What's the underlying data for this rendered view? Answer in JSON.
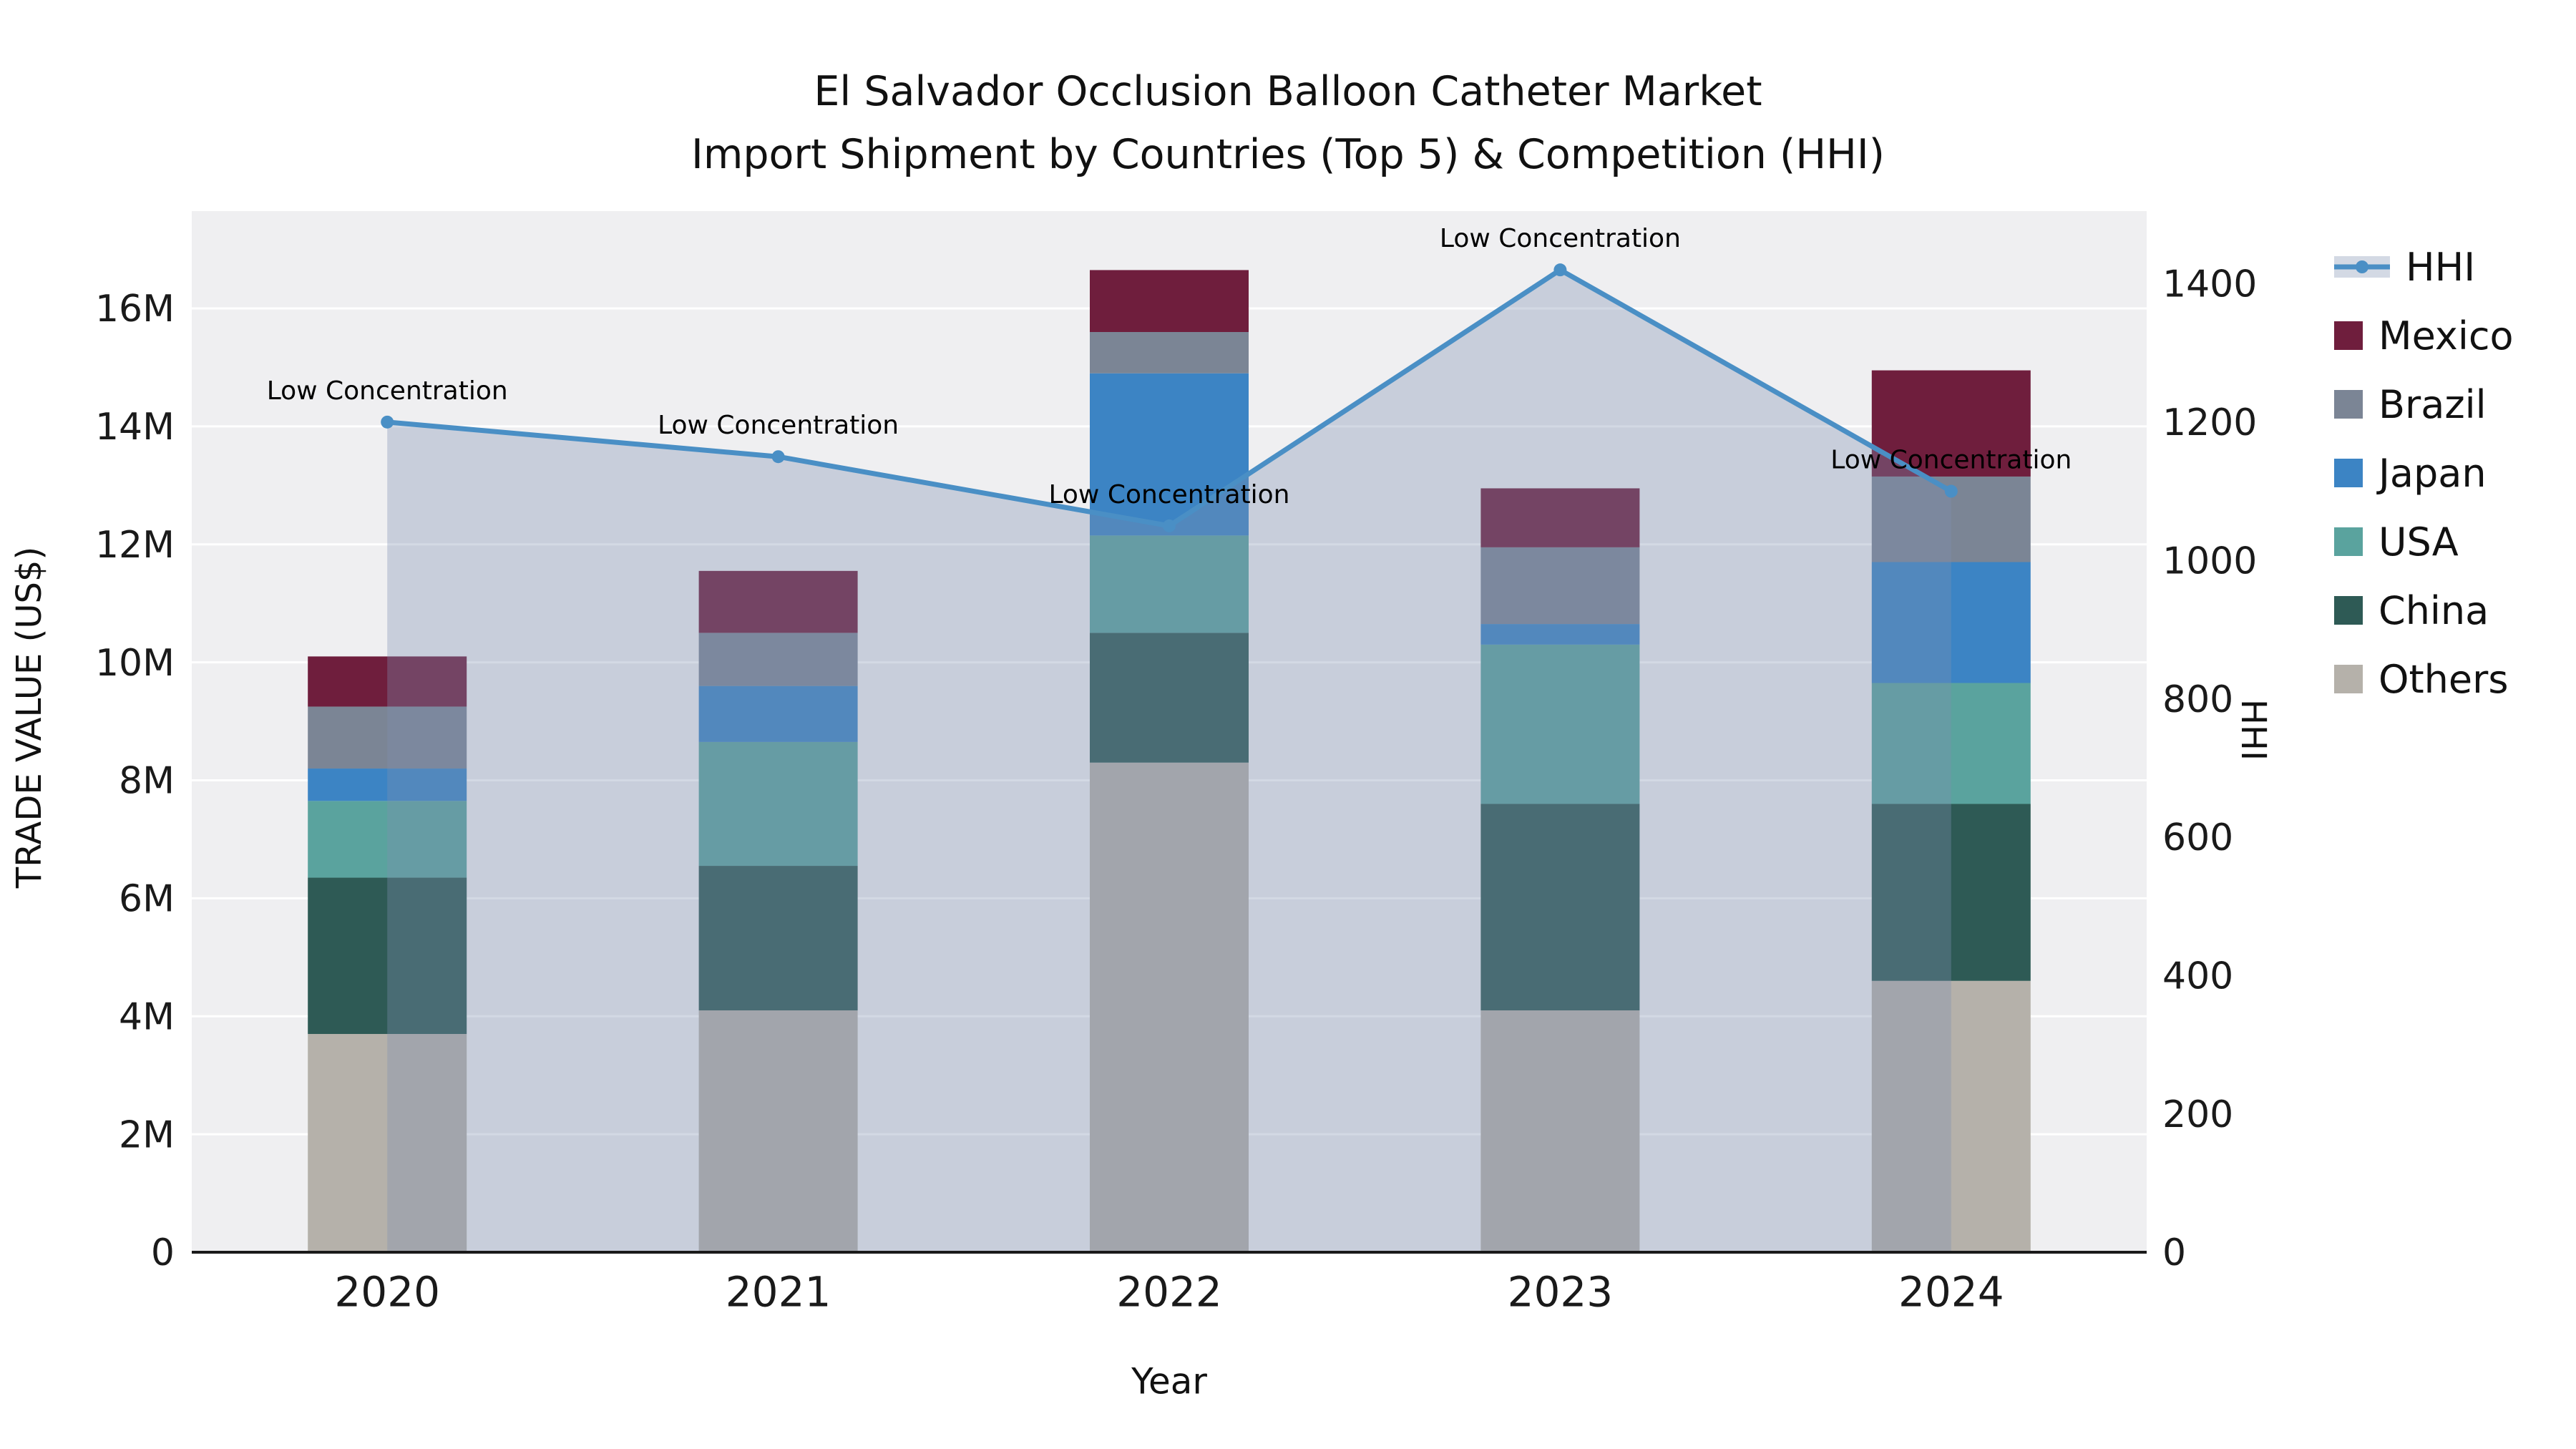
{
  "title": {
    "line1": "El Salvador Occlusion Balloon Catheter Market",
    "line2": "Import Shipment by Countries (Top 5) & Competition (HHI)"
  },
  "chart_data": {
    "type": "stacked-bar+line",
    "categories": [
      "2020",
      "2021",
      "2022",
      "2023",
      "2024"
    ],
    "value_unit": "million US$",
    "series": [
      {
        "name": "Others",
        "color": "#b5b1aa",
        "values": [
          3.7,
          4.1,
          8.3,
          4.1,
          4.6
        ]
      },
      {
        "name": "China",
        "color": "#2e5a55",
        "values": [
          2.65,
          2.45,
          2.2,
          3.5,
          3.0
        ]
      },
      {
        "name": "USA",
        "color": "#5aa39e",
        "values": [
          1.3,
          2.1,
          1.65,
          2.7,
          2.05
        ]
      },
      {
        "name": "Japan",
        "color": "#3c84c4",
        "values": [
          0.55,
          0.95,
          2.75,
          0.35,
          2.05
        ]
      },
      {
        "name": "Brazil",
        "color": "#7b8595",
        "values": [
          1.05,
          0.9,
          0.7,
          1.3,
          1.45
        ]
      },
      {
        "name": "Mexico",
        "color": "#6f1e3d",
        "values": [
          0.85,
          1.05,
          1.05,
          1.0,
          1.8
        ]
      }
    ],
    "line": {
      "name": "HHI",
      "color": "#4a8fc5",
      "fill_color": "rgba(125,145,175,0.34)",
      "values": [
        1200,
        1150,
        1050,
        1420,
        1100
      ]
    },
    "annotations": [
      "Low Concentration",
      "Low Concentration",
      "Low Concentration",
      "Low Concentration",
      "Low Concentration"
    ],
    "xlabel": "Year",
    "left_axis": {
      "title": "TRADE VALUE (US$)",
      "ticks": [
        "0",
        "2M",
        "4M",
        "6M",
        "8M",
        "10M",
        "12M",
        "14M",
        "16M"
      ],
      "tick_values": [
        0,
        2,
        4,
        6,
        8,
        10,
        12,
        14,
        16
      ],
      "range": [
        0,
        17.65
      ]
    },
    "right_axis": {
      "title": "HHI",
      "ticks": [
        "0",
        "200",
        "400",
        "600",
        "800",
        "1000",
        "1200",
        "1400"
      ],
      "tick_values": [
        0,
        200,
        400,
        600,
        800,
        1000,
        1200,
        1400
      ],
      "range": [
        0,
        1505
      ]
    },
    "legend": [
      "HHI",
      "Mexico",
      "Brazil",
      "Japan",
      "USA",
      "China",
      "Others"
    ],
    "plot_bg": "#efeff1",
    "grid_color": "#ffffff"
  }
}
